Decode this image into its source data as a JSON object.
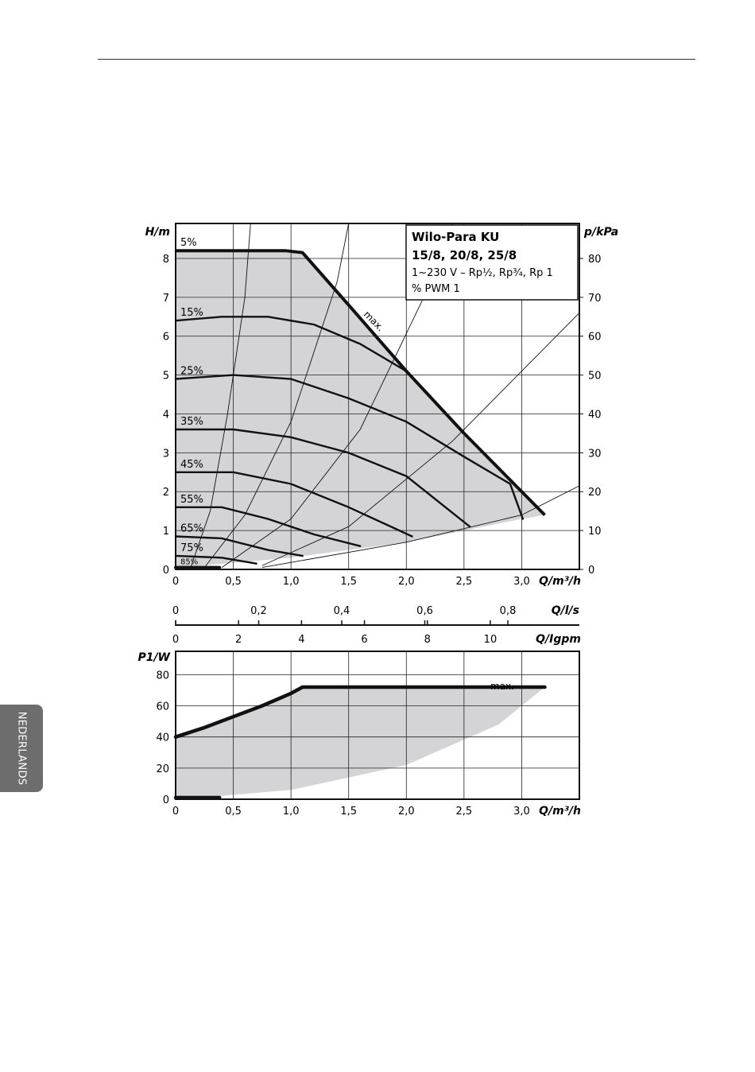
{
  "side_tab": {
    "label": "NEDERLANDS"
  },
  "chart_data": [
    {
      "type": "line",
      "legend_box": {
        "title_line1": "Wilo-Para KU",
        "title_line2": "15/8, 20/8, 25/8",
        "subtitle_line1": "1~230 V – Rp½, Rp¾, Rp 1",
        "subtitle_line2": "% PWM 1"
      },
      "ylabel": "H/m",
      "ylabel_right": "p/kPa",
      "xlabel": "Q/m³/h",
      "xlim": [
        0,
        3.5
      ],
      "ylim": [
        0,
        8.9
      ],
      "y2lim": [
        0,
        89
      ],
      "xticks": [
        "0",
        "0,5",
        "1,0",
        "1,5",
        "2,0",
        "2,5",
        "3,0"
      ],
      "yticks": [
        "0",
        "1",
        "2",
        "3",
        "4",
        "5",
        "6",
        "7",
        "8"
      ],
      "y2ticks": [
        "0",
        "10",
        "20",
        "30",
        "40",
        "50",
        "60",
        "70",
        "80"
      ],
      "grid": true,
      "max_label": "max.",
      "max_curve": [
        [
          0,
          8.2
        ],
        [
          0.95,
          8.2
        ],
        [
          1.1,
          8.15
        ],
        [
          1.5,
          6.8
        ],
        [
          2.0,
          5.1
        ],
        [
          2.5,
          3.5
        ],
        [
          2.8,
          2.6
        ],
        [
          3.2,
          1.4
        ]
      ],
      "operating_region_lower": [
        [
          0.05,
          0.05
        ],
        [
          1.0,
          0.3
        ],
        [
          2.0,
          0.7
        ],
        [
          3.0,
          1.3
        ],
        [
          3.2,
          1.4
        ]
      ],
      "series": [
        {
          "name": "5%",
          "points": [
            [
              0,
              8.2
            ],
            [
              0.95,
              8.2
            ]
          ]
        },
        {
          "name": "15%",
          "points": [
            [
              0,
              6.4
            ],
            [
              0.4,
              6.5
            ],
            [
              0.8,
              6.5
            ],
            [
              1.2,
              6.3
            ],
            [
              1.6,
              5.8
            ],
            [
              2.0,
              5.1
            ]
          ]
        },
        {
          "name": "25%",
          "points": [
            [
              0,
              4.9
            ],
            [
              0.5,
              5.0
            ],
            [
              1.0,
              4.9
            ],
            [
              1.5,
              4.4
            ],
            [
              2.0,
              3.8
            ],
            [
              2.5,
              2.9
            ],
            [
              2.9,
              2.2
            ],
            [
              3.01,
              1.3
            ]
          ]
        },
        {
          "name": "35%",
          "points": [
            [
              0,
              3.6
            ],
            [
              0.5,
              3.6
            ],
            [
              1.0,
              3.4
            ],
            [
              1.5,
              3.0
            ],
            [
              2.0,
              2.4
            ],
            [
              2.55,
              1.1
            ]
          ]
        },
        {
          "name": "45%",
          "points": [
            [
              0,
              2.5
            ],
            [
              0.5,
              2.5
            ],
            [
              1.0,
              2.2
            ],
            [
              1.5,
              1.6
            ],
            [
              2.05,
              0.85
            ]
          ]
        },
        {
          "name": "55%",
          "points": [
            [
              0,
              1.6
            ],
            [
              0.4,
              1.6
            ],
            [
              0.8,
              1.3
            ],
            [
              1.2,
              0.9
            ],
            [
              1.6,
              0.6
            ]
          ]
        },
        {
          "name": "65%",
          "points": [
            [
              0,
              0.85
            ],
            [
              0.4,
              0.8
            ],
            [
              0.8,
              0.5
            ],
            [
              1.1,
              0.35
            ]
          ]
        },
        {
          "name": "75%",
          "points": [
            [
              0,
              0.35
            ],
            [
              0.4,
              0.3
            ],
            [
              0.7,
              0.15
            ]
          ]
        },
        {
          "name": "85%",
          "points": [
            [
              0,
              0.05
            ],
            [
              0.38,
              0.05
            ]
          ]
        }
      ],
      "system_curves": [
        [
          [
            0.13,
            0.05
          ],
          [
            0.3,
            1.5
          ],
          [
            0.45,
            4.0
          ],
          [
            0.6,
            7.0
          ],
          [
            0.65,
            8.9
          ]
        ],
        [
          [
            0.25,
            0.05
          ],
          [
            0.6,
            1.4
          ],
          [
            1.0,
            3.8
          ],
          [
            1.4,
            7.4
          ],
          [
            1.5,
            8.9
          ]
        ],
        [
          [
            0.4,
            0.05
          ],
          [
            1.0,
            1.3
          ],
          [
            1.6,
            3.6
          ],
          [
            2.2,
            7.3
          ],
          [
            2.4,
            8.9
          ]
        ],
        [
          [
            0.75,
            0.1
          ],
          [
            1.5,
            1.1
          ],
          [
            2.4,
            3.3
          ],
          [
            3.5,
            6.6
          ]
        ],
        [
          [
            0.75,
            0.05
          ],
          [
            2.0,
            0.7
          ],
          [
            3.0,
            1.4
          ],
          [
            3.5,
            2.15
          ]
        ]
      ]
    },
    {
      "type": "axis",
      "xlabel": "Q/l/s",
      "xlim": [
        0,
        0.9722
      ],
      "xticks": [
        "0",
        "0,2",
        "0,4",
        "0,6",
        "0,8"
      ],
      "tick_values": [
        0,
        0.2,
        0.4,
        0.6,
        0.8
      ]
    },
    {
      "type": "axis",
      "xlabel": "Q/Igpm",
      "xlim": [
        0,
        12.83
      ],
      "xticks": [
        "0",
        "2",
        "4",
        "6",
        "8",
        "10"
      ],
      "tick_values": [
        0,
        2,
        4,
        6,
        8,
        10
      ]
    },
    {
      "type": "line",
      "ylabel": "P1/W",
      "xlabel": "Q/m³/h",
      "xlim": [
        0,
        3.5
      ],
      "ylim": [
        0,
        95
      ],
      "xticks": [
        "0",
        "0,5",
        "1,0",
        "1,5",
        "2,0",
        "2,5",
        "3,0"
      ],
      "yticks": [
        "0",
        "20",
        "40",
        "60",
        "80"
      ],
      "grid": true,
      "max_label": "max.",
      "series": [
        {
          "name": "max.",
          "points": [
            [
              0,
              40
            ],
            [
              0.25,
              46
            ],
            [
              0.5,
              53
            ],
            [
              0.75,
              60
            ],
            [
              1.0,
              68
            ],
            [
              1.1,
              72
            ],
            [
              3.2,
              72
            ]
          ]
        },
        {
          "points": [
            [
              0,
              1
            ],
            [
              0.38,
              1
            ]
          ]
        }
      ],
      "operating_region_lower": [
        [
          0.05,
          0
        ],
        [
          1.0,
          6
        ],
        [
          2.0,
          22
        ],
        [
          2.8,
          48
        ],
        [
          3.2,
          72
        ]
      ]
    }
  ]
}
